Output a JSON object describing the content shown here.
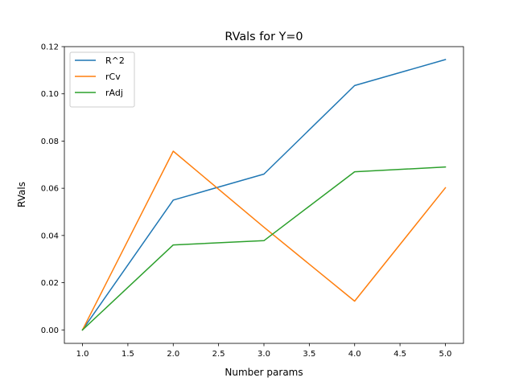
{
  "chart_data": {
    "type": "line",
    "title": "RVals for Y=0",
    "xlabel": "Number params",
    "ylabel": "RVals",
    "x": [
      1,
      2,
      3,
      4,
      5
    ],
    "xlim": [
      0.8,
      5.2
    ],
    "ylim": [
      -0.0057,
      0.12
    ],
    "xticks": [
      1.0,
      1.5,
      2.0,
      2.5,
      3.0,
      3.5,
      4.0,
      4.5,
      5.0
    ],
    "xtick_labels": [
      "1.0",
      "1.5",
      "2.0",
      "2.5",
      "3.0",
      "3.5",
      "4.0",
      "4.5",
      "5.0"
    ],
    "yticks": [
      0.0,
      0.02,
      0.04,
      0.06,
      0.08,
      0.1,
      0.12
    ],
    "ytick_labels": [
      "0.00",
      "0.02",
      "0.04",
      "0.06",
      "0.08",
      "0.10",
      "0.12"
    ],
    "grid": false,
    "legend_position": "upper-left",
    "series": [
      {
        "name": "R^2",
        "color": "#1f77b4",
        "values": [
          0.0,
          0.055,
          0.066,
          0.1035,
          0.1145
        ]
      },
      {
        "name": "rCv",
        "color": "#ff7f0e",
        "values": [
          0.0,
          0.0757,
          0.0435,
          0.0122,
          0.0602
        ]
      },
      {
        "name": "rAdj",
        "color": "#2ca02c",
        "values": [
          0.0,
          0.036,
          0.0378,
          0.067,
          0.069
        ]
      }
    ]
  }
}
